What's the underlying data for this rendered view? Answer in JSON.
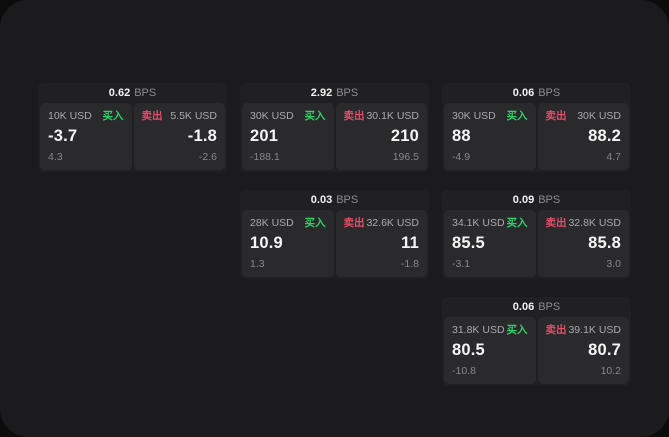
{
  "colors": {
    "buy_green": "#31d069",
    "sell_red": "#e04e68",
    "panel_bg": "#1b1b1d",
    "card_bg": "#202022",
    "subpanel_bg": "#2a2a2c"
  },
  "labels": {
    "bps": "BPS",
    "buy": "买入",
    "sell": "卖出"
  },
  "cards": [
    {
      "bps": "0.62",
      "buy": {
        "size": "10K USD",
        "value": "-3.7",
        "sub": "4.3"
      },
      "sell": {
        "size": "5.5K USD",
        "value": "-1.8",
        "sub": "-2.6"
      }
    },
    {
      "bps": "2.92",
      "buy": {
        "size": "30K USD",
        "value": "201",
        "sub": "-188.1"
      },
      "sell": {
        "size": "30.1K USD",
        "value": "210",
        "sub": "196.5"
      }
    },
    {
      "bps": "0.06",
      "buy": {
        "size": "30K USD",
        "value": "88",
        "sub": "-4.9"
      },
      "sell": {
        "size": "30K USD",
        "value": "88.2",
        "sub": "4.7"
      }
    },
    {
      "bps": "0.03",
      "buy": {
        "size": "28K USD",
        "value": "10.9",
        "sub": "1.3"
      },
      "sell": {
        "size": "32.6K USD",
        "value": "11",
        "sub": "-1.8"
      }
    },
    {
      "bps": "0.09",
      "buy": {
        "size": "34.1K USD",
        "value": "85.5",
        "sub": "-3.1"
      },
      "sell": {
        "size": "32.8K USD",
        "value": "85.8",
        "sub": "3.0"
      }
    },
    {
      "bps": "0.06",
      "buy": {
        "size": "31.8K USD",
        "value": "80.5",
        "sub": "-10.8"
      },
      "sell": {
        "size": "39.1K USD",
        "value": "80.7",
        "sub": "10.2"
      }
    }
  ]
}
